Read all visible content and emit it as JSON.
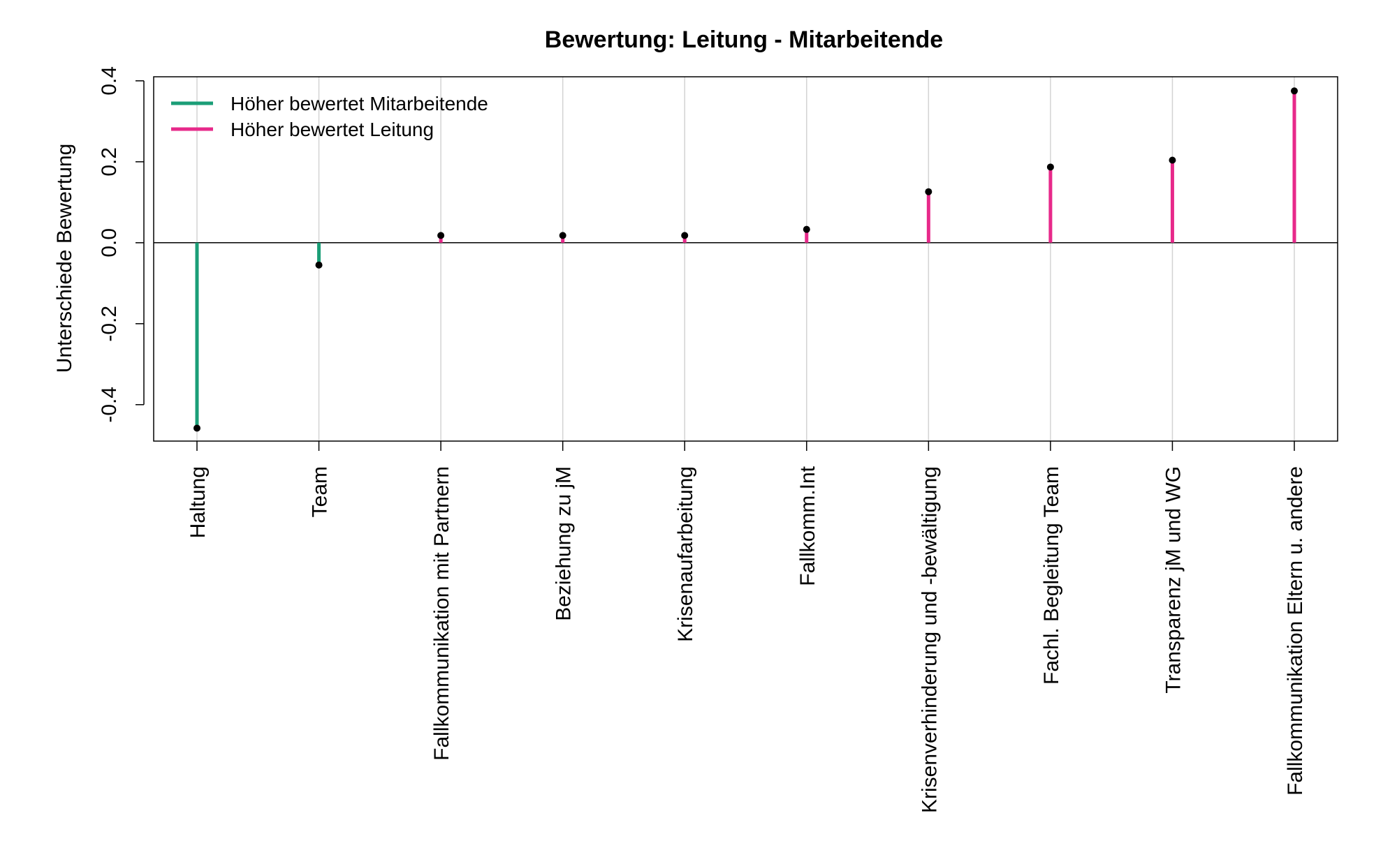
{
  "chart_data": {
    "type": "lollipop",
    "title": "Bewertung: Leitung - Mitarbeitende",
    "xlabel": "",
    "ylabel": "Unterschiede Bewertung",
    "ylim": [
      -0.49,
      0.41
    ],
    "yticks": [
      -0.4,
      -0.2,
      0.0,
      0.2,
      0.4
    ],
    "ytick_labels": [
      "-0.4",
      "-0.2",
      "0.0",
      "0.2",
      "0.4"
    ],
    "grid": "vertical",
    "legend_position": "top-left",
    "legend": [
      {
        "label": "Höher bewertet Mitarbeitende",
        "color": "#1b9e77"
      },
      {
        "label": "Höher bewertet Leitung",
        "color": "#e7298a"
      }
    ],
    "categories": [
      "Haltung",
      "Team",
      "Fallkommunikation mit Partnern",
      "Beziehung zu jM",
      "Krisenaufarbeitung",
      "Fallkomm.Int",
      "Krisenverhinderung und -bewältigung",
      "Fachl. Begleitung Team",
      "Transparenz jM und WG",
      "Fallkommunikation Eltern u. andere"
    ],
    "values": [
      -0.458,
      -0.055,
      0.018,
      0.018,
      0.018,
      0.033,
      0.126,
      0.187,
      0.204,
      0.375
    ],
    "colors": {
      "negative": "#1b9e77",
      "positive": "#e7298a",
      "point": "#000000",
      "grid": "#d3d3d3",
      "axis": "#000000"
    }
  }
}
